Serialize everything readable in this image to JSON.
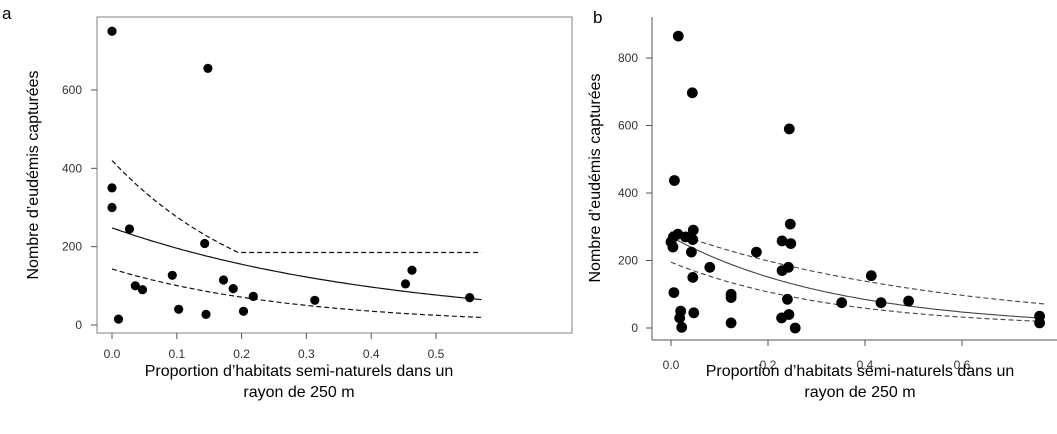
{
  "chart_data": [
    {
      "type": "scatter",
      "panel_label": "a",
      "ylabel": "Nombre d’eudémis capturées",
      "xlabel_line1": "Proportion d’habitats semi-naturels dans un",
      "xlabel_line2": "rayon de 250 m",
      "xlim": [
        0,
        0.57
      ],
      "ylim": [
        -20,
        780
      ],
      "frame": "box",
      "xticks": [
        0.0,
        0.1,
        0.2,
        0.3,
        0.4,
        0.5
      ],
      "xtick_labels": [
        "0.0",
        "0.1",
        "0.2",
        "0.3",
        "0.4",
        "0.5"
      ],
      "yticks": [
        0,
        200,
        400,
        600
      ],
      "ytick_labels": [
        "0",
        "200",
        "400",
        "600"
      ],
      "points": [
        [
          0.0,
          750
        ],
        [
          0.148,
          655
        ],
        [
          0.0,
          350
        ],
        [
          0.0,
          300
        ],
        [
          0.027,
          245
        ],
        [
          0.143,
          208
        ],
        [
          0.093,
          127
        ],
        [
          0.463,
          140
        ],
        [
          0.172,
          115
        ],
        [
          0.453,
          105
        ],
        [
          0.036,
          100
        ],
        [
          0.047,
          90
        ],
        [
          0.187,
          93
        ],
        [
          0.218,
          73
        ],
        [
          0.313,
          63
        ],
        [
          0.552,
          70
        ],
        [
          0.103,
          40
        ],
        [
          0.203,
          35
        ],
        [
          0.145,
          27
        ],
        [
          0.01,
          15
        ]
      ],
      "fit": {
        "a": 248,
        "b": 2.35
      },
      "upper": {
        "a": 420,
        "b": 4.2,
        "floor": 185
      },
      "lower": {
        "a": 143,
        "b": 3.5
      }
    },
    {
      "type": "scatter",
      "panel_label": "b",
      "ylabel": "Nombre d’eudémis capturées",
      "xlabel_line1": "Proportion d’habitats semi-naturels dans un",
      "xlabel_line2": "rayon de 250 m",
      "xlim": [
        -0.05,
        0.77
      ],
      "ylim": [
        -40,
        900
      ],
      "frame": "L",
      "xticks": [
        0.0,
        0.2,
        0.4,
        0.6
      ],
      "xtick_labels": [
        "0.0",
        "0.2",
        "0.4",
        "0.6"
      ],
      "yticks": [
        0,
        200,
        400,
        600,
        800
      ],
      "ytick_labels": [
        "0",
        "200",
        "400",
        "600",
        "800"
      ],
      "points": [
        [
          0.015,
          865
        ],
        [
          0.044,
          697
        ],
        [
          0.244,
          590
        ],
        [
          0.007,
          437
        ],
        [
          0.246,
          308
        ],
        [
          0.046,
          290
        ],
        [
          0.014,
          278
        ],
        [
          0.005,
          270
        ],
        [
          0.03,
          270
        ],
        [
          0.045,
          262
        ],
        [
          0.0,
          255
        ],
        [
          0.229,
          258
        ],
        [
          0.247,
          250
        ],
        [
          0.004,
          240
        ],
        [
          0.042,
          225
        ],
        [
          0.176,
          225
        ],
        [
          0.08,
          180
        ],
        [
          0.242,
          180
        ],
        [
          0.229,
          170
        ],
        [
          0.045,
          150
        ],
        [
          0.413,
          155
        ],
        [
          0.006,
          105
        ],
        [
          0.124,
          100
        ],
        [
          0.124,
          90
        ],
        [
          0.24,
          85
        ],
        [
          0.352,
          75
        ],
        [
          0.433,
          75
        ],
        [
          0.49,
          80
        ],
        [
          0.02,
          50
        ],
        [
          0.047,
          45
        ],
        [
          0.243,
          40
        ],
        [
          0.228,
          30
        ],
        [
          0.018,
          30
        ],
        [
          0.124,
          15
        ],
        [
          0.022,
          2
        ],
        [
          0.256,
          0
        ],
        [
          0.76,
          35
        ],
        [
          0.76,
          15
        ]
      ],
      "fit": {
        "a": 270,
        "b": 2.9
      },
      "upper": {
        "a": 285,
        "b": 1.8,
        "floor": 0
      },
      "lower": {
        "a": 195,
        "b": 3.0
      }
    }
  ]
}
